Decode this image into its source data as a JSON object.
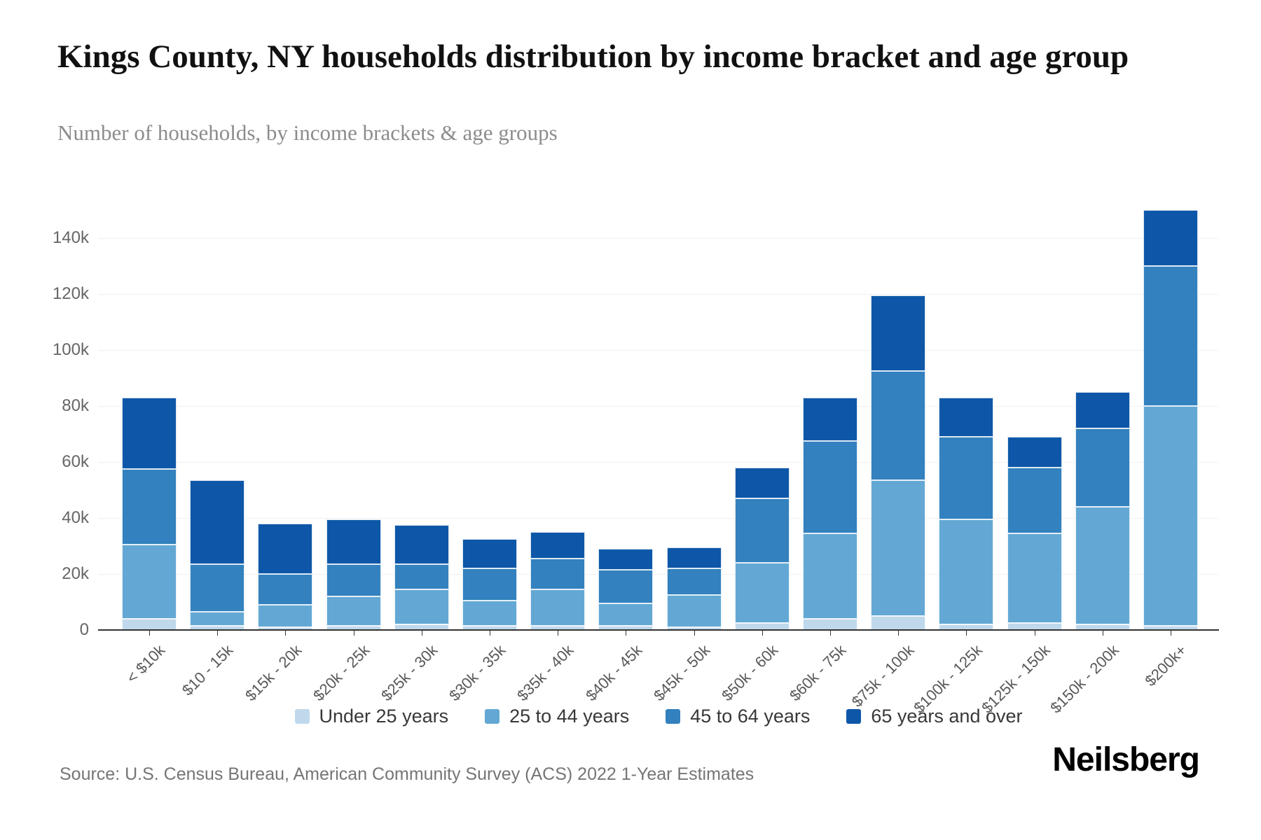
{
  "header": {
    "title": "Kings County, NY households distribution by income bracket and age group",
    "subtitle": "Number of households, by income brackets & age groups"
  },
  "footer": {
    "source": "Source: U.S. Census Bureau, American Community Survey (ACS) 2022 1-Year Estimates",
    "logo": "Neilsberg"
  },
  "chart_data": {
    "type": "bar",
    "stacked": true,
    "title": "Kings County, NY households distribution by income bracket and age group",
    "xlabel": "",
    "ylabel": "Number of households",
    "grid": "horizontal",
    "legend_position": "bottom-center",
    "ylim": [
      0,
      150000
    ],
    "categories": [
      "< $10k",
      "$10 - 15k",
      "$15k - 20k",
      "$20k - 25k",
      "$25k - 30k",
      "$30k - 35k",
      "$35k - 40k",
      "$40k - 45k",
      "$45k - 50k",
      "$50k - 60k",
      "$60k - 75k",
      "$75k - 100k",
      "$100k - 125k",
      "$125k - 150k",
      "$150k - 200k",
      "$200k+"
    ],
    "y_axis": {
      "tick_labels": [
        "0",
        "20k",
        "40k",
        "60k",
        "80k",
        "100k",
        "120k",
        "140k"
      ],
      "tick_values": [
        0,
        20000,
        40000,
        60000,
        80000,
        100000,
        120000,
        140000
      ]
    },
    "series": [
      {
        "name": "Under 25 years",
        "color": "#bfd8eb",
        "values": [
          4000,
          1500,
          1000,
          1500,
          2000,
          1500,
          1500,
          1500,
          1000,
          2500,
          4000,
          5000,
          2000,
          2500,
          2000,
          1500
        ]
      },
      {
        "name": "25 to 44 years",
        "color": "#63a8d4",
        "values": [
          26500,
          5000,
          8000,
          10500,
          12500,
          9000,
          13000,
          8000,
          11500,
          21500,
          30500,
          48500,
          37500,
          32000,
          42000,
          78500
        ]
      },
      {
        "name": "45 to 64 years",
        "color": "#3381be",
        "values": [
          27000,
          17000,
          11000,
          11500,
          9000,
          11500,
          11000,
          12000,
          9500,
          23000,
          33000,
          39000,
          29500,
          23500,
          28000,
          50000
        ]
      },
      {
        "name": "65 years and over",
        "color": "#0e57a8",
        "values": [
          25500,
          30000,
          18000,
          16000,
          14000,
          10500,
          9500,
          7500,
          7500,
          11000,
          15500,
          27000,
          14000,
          11000,
          13000,
          20000
        ]
      }
    ]
  }
}
